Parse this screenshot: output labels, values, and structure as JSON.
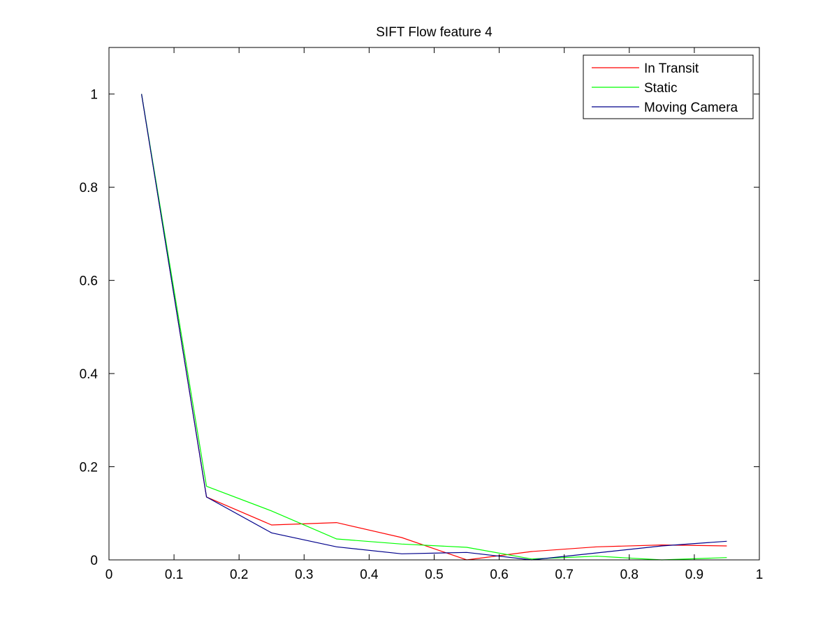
{
  "chart_data": {
    "type": "line",
    "title": "SIFT Flow feature 4",
    "xlabel": "",
    "ylabel": "",
    "xlim": [
      0,
      1
    ],
    "ylim": [
      0,
      1.1
    ],
    "x_ticks": [
      "0",
      "0.1",
      "0.2",
      "0.3",
      "0.4",
      "0.5",
      "0.6",
      "0.7",
      "0.8",
      "0.9",
      "1"
    ],
    "y_ticks": [
      "0",
      "0.2",
      "0.4",
      "0.6",
      "0.8",
      "1"
    ],
    "grid": false,
    "legend_position": "top-right",
    "x": [
      0.05,
      0.15,
      0.25,
      0.35,
      0.45,
      0.55,
      0.65,
      0.75,
      0.85,
      0.95
    ],
    "series": [
      {
        "name": "In Transit",
        "color": "#ff0000",
        "values": [
          1.0,
          0.135,
          0.075,
          0.08,
          0.048,
          0.0,
          0.018,
          0.028,
          0.032,
          0.03
        ]
      },
      {
        "name": "Static",
        "color": "#00ff00",
        "values": [
          1.0,
          0.158,
          0.105,
          0.045,
          0.034,
          0.027,
          0.002,
          0.008,
          0.0,
          0.005
        ]
      },
      {
        "name": "Moving Camera",
        "color": "#00008b",
        "values": [
          1.0,
          0.135,
          0.058,
          0.028,
          0.013,
          0.016,
          0.0,
          0.015,
          0.03,
          0.04
        ]
      }
    ]
  }
}
